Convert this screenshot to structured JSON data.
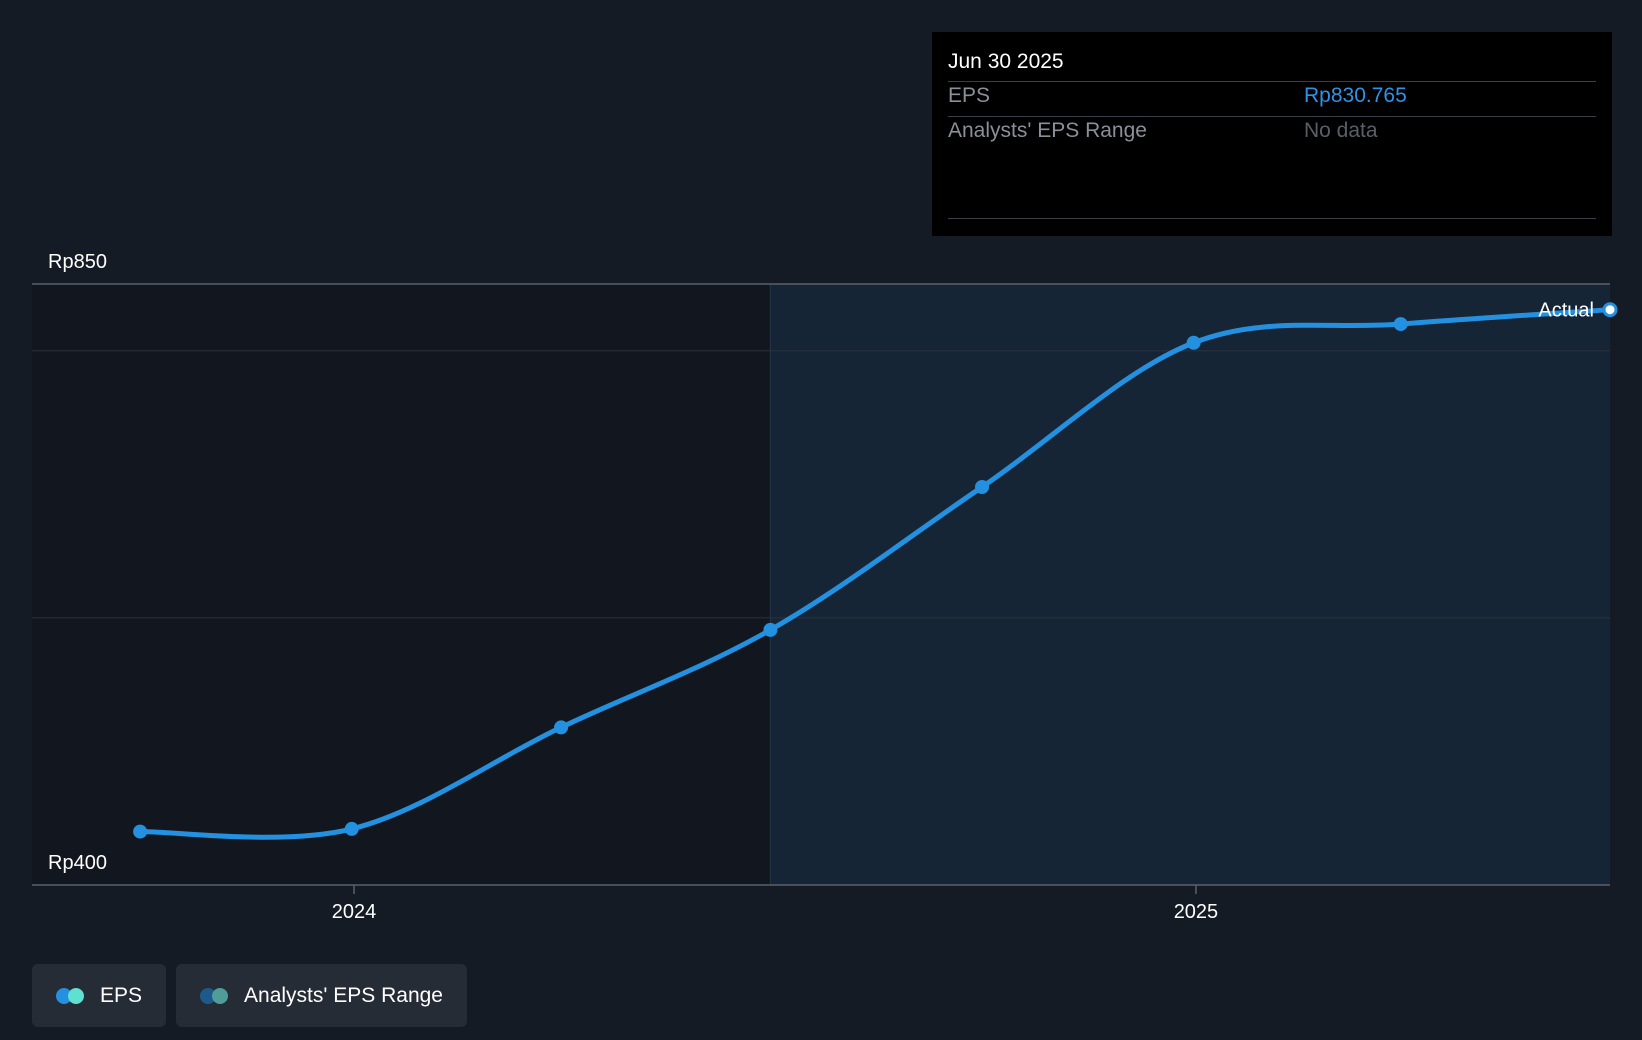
{
  "colors": {
    "background": "#151b24",
    "eps_line": "#2490e0",
    "eps_value": "#2c93e6",
    "future_region": "#162536",
    "past_region": "#12171f"
  },
  "tooltip": {
    "date": "Jun 30 2025",
    "rows": [
      {
        "label": "EPS",
        "value": "Rp830.765",
        "value_color": "#2c93e6"
      },
      {
        "label": "Analysts' EPS Range",
        "value": "No data",
        "value_color": "#5a5f67"
      }
    ]
  },
  "actual_label": "Actual",
  "legend": [
    {
      "label": "EPS",
      "icon": "eps-legend-icon",
      "colors": [
        "#2490e0",
        "#5fe0d0"
      ]
    },
    {
      "label": "Analysts' EPS Range",
      "icon": "range-legend-icon",
      "colors": [
        "#1d5a8c",
        "#4f9c98"
      ]
    }
  ],
  "chart_data": {
    "type": "line",
    "title": "",
    "xlabel": "",
    "ylabel": "",
    "y_ticks": [
      {
        "value": 850,
        "label": "Rp850"
      },
      {
        "value": 400,
        "label": "Rp400"
      }
    ],
    "ylim": [
      400,
      850
    ],
    "x_ticks": [
      {
        "date": "2024-01-01",
        "label": "2024"
      },
      {
        "date": "2025-01-01",
        "label": "2025"
      }
    ],
    "xlim": [
      "2023-08-14",
      "2025-06-30"
    ],
    "grid": true,
    "highlight_start": "2024-06-30",
    "series": [
      {
        "name": "EPS",
        "points": [
          {
            "x": "2023-09-30",
            "y": 440
          },
          {
            "x": "2023-12-31",
            "y": 442
          },
          {
            "x": "2024-03-31",
            "y": 518
          },
          {
            "x": "2024-06-30",
            "y": 591
          },
          {
            "x": "2024-09-30",
            "y": 698
          },
          {
            "x": "2024-12-31",
            "y": 806
          },
          {
            "x": "2025-03-31",
            "y": 820
          },
          {
            "x": "2025-06-30",
            "y": 830.765
          }
        ]
      }
    ]
  }
}
